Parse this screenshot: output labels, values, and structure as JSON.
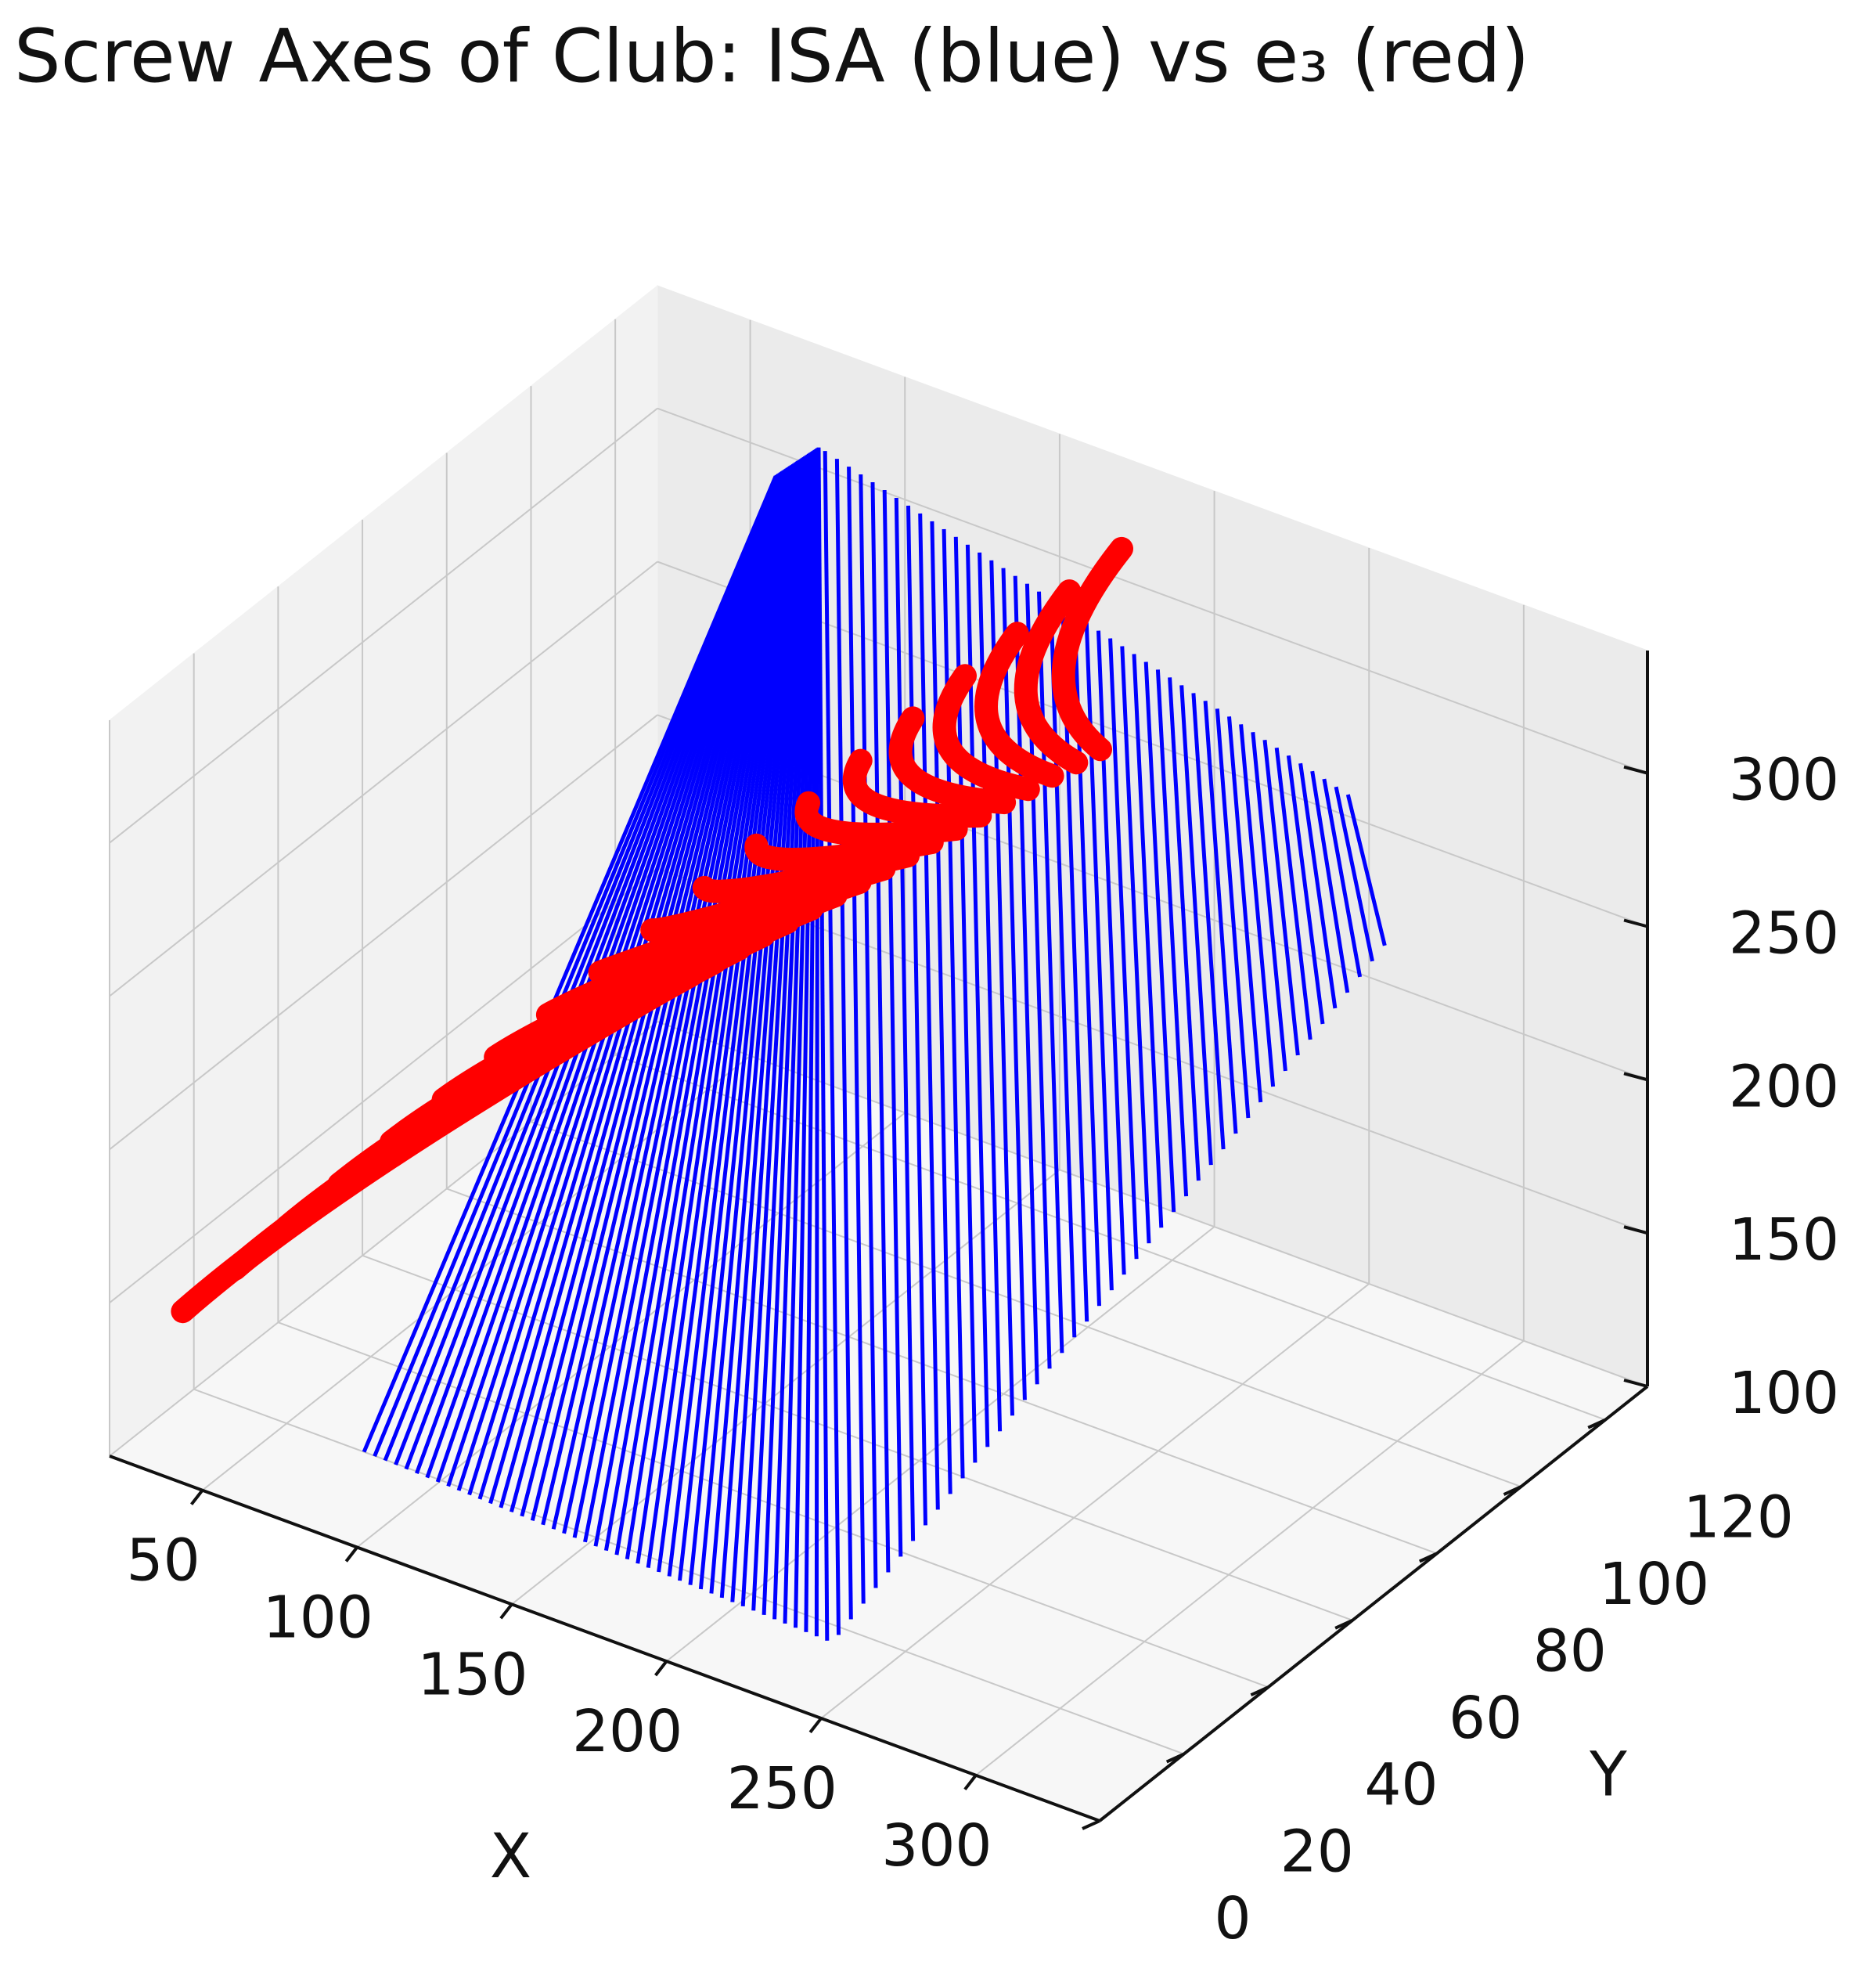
{
  "chart_data": {
    "type": "line3d",
    "title": "Screw Axes of Club: ISA (blue) vs e₃ (red)",
    "xlabel": "X",
    "ylabel": "Y",
    "zlabel": "",
    "xlim": [
      20,
      340
    ],
    "ylim": [
      0,
      130
    ],
    "zlim": [
      100,
      340
    ],
    "xticks": [
      "50",
      "100",
      "150",
      "200",
      "250",
      "300"
    ],
    "yticks": [
      "0",
      "20",
      "40",
      "60",
      "80",
      "100",
      "120"
    ],
    "zticks": [
      "100",
      "150",
      "200",
      "250",
      "300"
    ],
    "grid": true,
    "series": [
      {
        "color": "#0000ff",
        "kind": "line segments (ISA)",
        "count": 90,
        "start_points": [
          [
            75,
            20,
            100
          ],
          [
            240,
            10,
            110
          ],
          [
            330,
            75,
            300
          ]
        ],
        "end_points": [
          [
            65,
            125,
            300
          ],
          [
            75,
            128,
            310
          ],
          [
            250,
            125,
            265
          ]
        ]
      },
      {
        "color": "#ff0000",
        "kind": "arcs (e₃)",
        "count": 19,
        "arc_start": [
          [
            30,
            10,
            140
          ],
          [
            170,
            130,
            310
          ]
        ],
        "arc_end": [
          [
            30,
            125,
            120
          ],
          [
            170,
            125,
            250
          ]
        ]
      }
    ]
  }
}
